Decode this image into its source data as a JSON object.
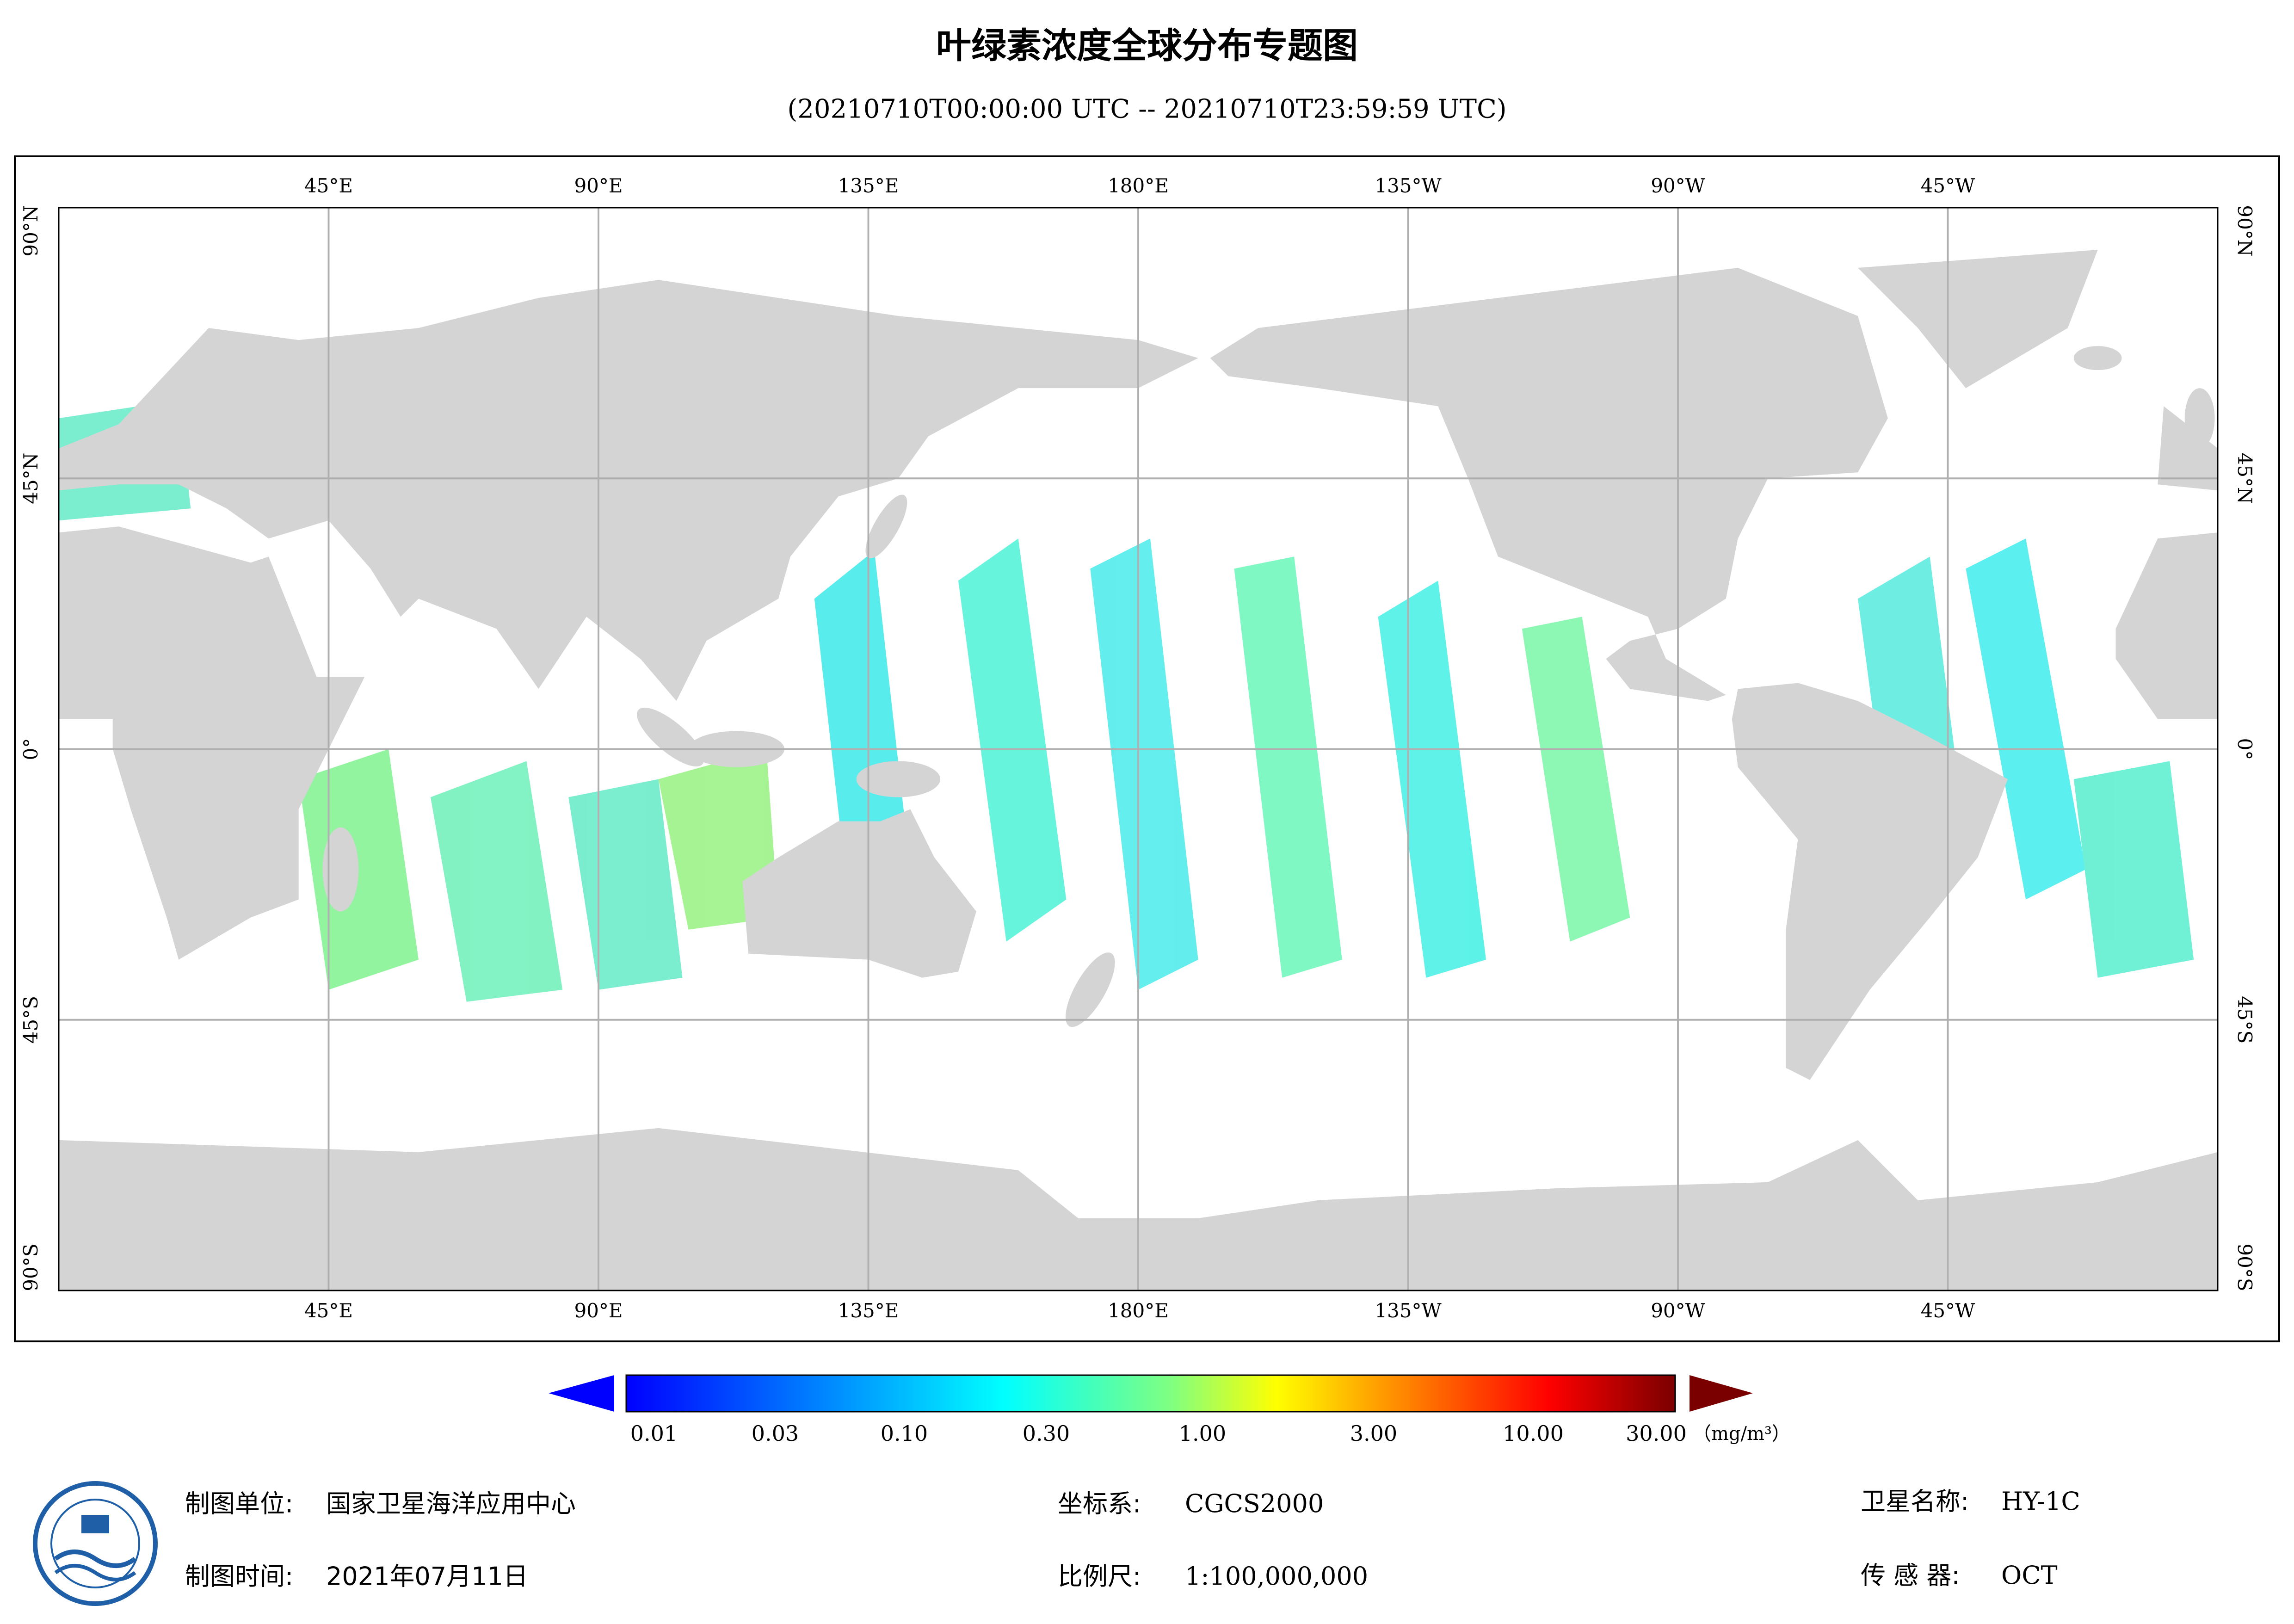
{
  "title": "叶绿素浓度全球分布专题图",
  "subtitle": "(20210710T00:00:00 UTC -- 20210710T23:59:59 UTC)",
  "map": {
    "lon_labels": [
      "45°E",
      "90°E",
      "135°E",
      "180°E",
      "135°W",
      "90°W",
      "45°W"
    ],
    "lat_labels": [
      "90°N",
      "45°N",
      "0°",
      "45°S",
      "90°S"
    ]
  },
  "colorbar": {
    "labels": [
      "0.01",
      "0.03",
      "0.10",
      "0.30",
      "1.00",
      "3.00",
      "10.00",
      "30.00"
    ],
    "unit": "（mg/m³）"
  },
  "footer": {
    "unit_label": "制图单位:",
    "unit_value": "国家卫星海洋应用中心",
    "time_label": "制图时间:",
    "time_value": "2021年07月11日",
    "crs_label": "坐标系:",
    "crs_value": "CGCS2000",
    "scale_label": "比例尺:",
    "scale_value": "1:100,000,000",
    "satellite_label": "卫星名称:",
    "satellite_value": "HY-1C",
    "sensor_label": "传 感 器:",
    "sensor_value": "OCT"
  }
}
